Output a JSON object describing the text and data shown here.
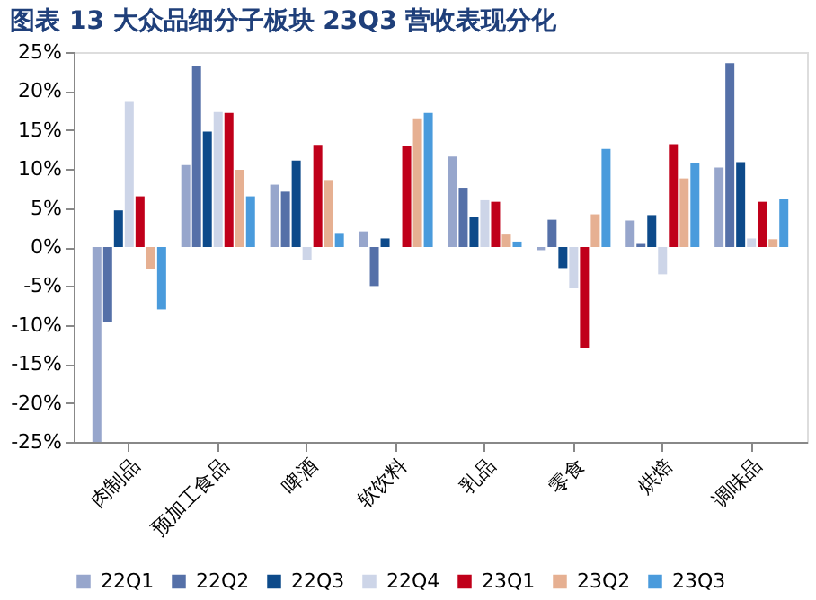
{
  "chart_data": {
    "type": "bar",
    "title": "图表 13 大众品细分子板块 23Q3 营收表现分化",
    "categories": [
      "肉制品",
      "预加工食品",
      "啤酒",
      "软饮料",
      "乳品",
      "零食",
      "烘焙",
      "调味品"
    ],
    "series": [
      {
        "name": "22Q1",
        "color": "#97a6cc",
        "values": [
          -25,
          10.5,
          8.0,
          2.0,
          11.6,
          -0.4,
          3.4,
          10.2
        ]
      },
      {
        "name": "22Q2",
        "color": "#5570a8",
        "values": [
          -9.6,
          23.2,
          7.1,
          -5,
          7.6,
          3.5,
          0.4,
          23.6
        ]
      },
      {
        "name": "22Q3",
        "color": "#0d4a8a",
        "values": [
          4.7,
          14.8,
          11.1,
          1.1,
          3.8,
          -2.7,
          4.1,
          10.9
        ]
      },
      {
        "name": "22Q4",
        "color": "#cdd5e8",
        "values": [
          18.6,
          17.3,
          -1.7,
          0,
          6.0,
          -5.3,
          -3.5,
          1.1
        ]
      },
      {
        "name": "23Q1",
        "color": "#c0001a",
        "values": [
          6.5,
          17.2,
          13.1,
          12.9,
          5.8,
          -12.9,
          13.2,
          5.8
        ]
      },
      {
        "name": "23Q2",
        "color": "#e6b092",
        "values": [
          -2.8,
          9.9,
          8.6,
          16.5,
          1.6,
          4.2,
          8.8,
          1.0
        ]
      },
      {
        "name": "23Q3",
        "color": "#4a9bdc",
        "values": [
          -8,
          6.5,
          1.8,
          17.2,
          0.7,
          12.6,
          10.7,
          6.2
        ]
      }
    ],
    "ylim": [
      -25,
      25
    ],
    "yticks": [
      {
        "value": -25,
        "label": "-25%"
      },
      {
        "value": -20,
        "label": "-20%"
      },
      {
        "value": -15,
        "label": "-15%"
      },
      {
        "value": -10,
        "label": "-10%"
      },
      {
        "value": -5,
        "label": "-5%"
      },
      {
        "value": 0,
        "label": "0%"
      },
      {
        "value": 5,
        "label": "5%"
      },
      {
        "value": 10,
        "label": "10%"
      },
      {
        "value": 15,
        "label": "15%"
      },
      {
        "value": 20,
        "label": "20%"
      },
      {
        "value": 25,
        "label": "25%"
      }
    ],
    "grid": false,
    "legend": "bottom"
  }
}
